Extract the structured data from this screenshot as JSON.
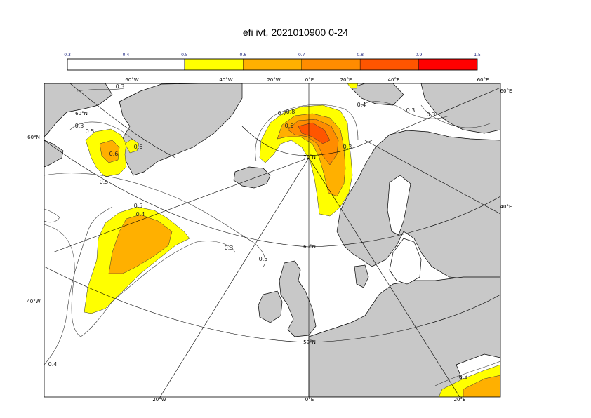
{
  "title": "efi ivt, 2021010900 0-24",
  "legend": {
    "ticks": [
      "0.3",
      "0.4",
      "0.5",
      "0.6",
      "0.7",
      "0.8",
      "0.9",
      "1.5"
    ],
    "bins": [
      {
        "from": "0.3",
        "to": "0.4",
        "color": "#ffffff"
      },
      {
        "from": "0.4",
        "to": "0.5",
        "color": "#ffffff"
      },
      {
        "from": "0.5",
        "to": "0.6",
        "color": "#ffff00"
      },
      {
        "from": "0.6",
        "to": "0.7",
        "color": "#ffb000"
      },
      {
        "from": "0.7",
        "to": "0.8",
        "color": "#ff8c00"
      },
      {
        "from": "0.8",
        "to": "0.9",
        "color": "#ff5500"
      },
      {
        "from": "0.9",
        "to": "1.5",
        "color": "#ff0000"
      }
    ]
  },
  "map": {
    "colors": {
      "land": "#c8c8c8",
      "sea": "#ffffff",
      "coast": "#000000",
      "grid": "#000000",
      "yellow": "#ffff00",
      "orange_light": "#ffb000",
      "orange": "#ff8c00",
      "red": "#ff5500"
    },
    "grid_labels": {
      "top": [
        "60°W",
        "40°W",
        "20°W",
        "0°E",
        "20°E",
        "40°E",
        "60°E"
      ],
      "left": [
        "60°N",
        "40°W"
      ],
      "right": [
        "60°E",
        "40°E"
      ],
      "bottom": [
        "20°W",
        "0°E",
        "20°E"
      ],
      "interior": [
        "60°N",
        "70°N",
        "60°N",
        "50°N"
      ]
    },
    "contour_labels": [
      "0.3",
      "0.3",
      "0.5",
      "0.6",
      "0.5",
      "0.6",
      "0.5",
      "0.4",
      "0.3",
      "0.5",
      "0.7",
      "0.8",
      "0.6",
      "0.3",
      "0.4",
      "0.3",
      "0.3",
      "0.4",
      "0.3"
    ]
  }
}
